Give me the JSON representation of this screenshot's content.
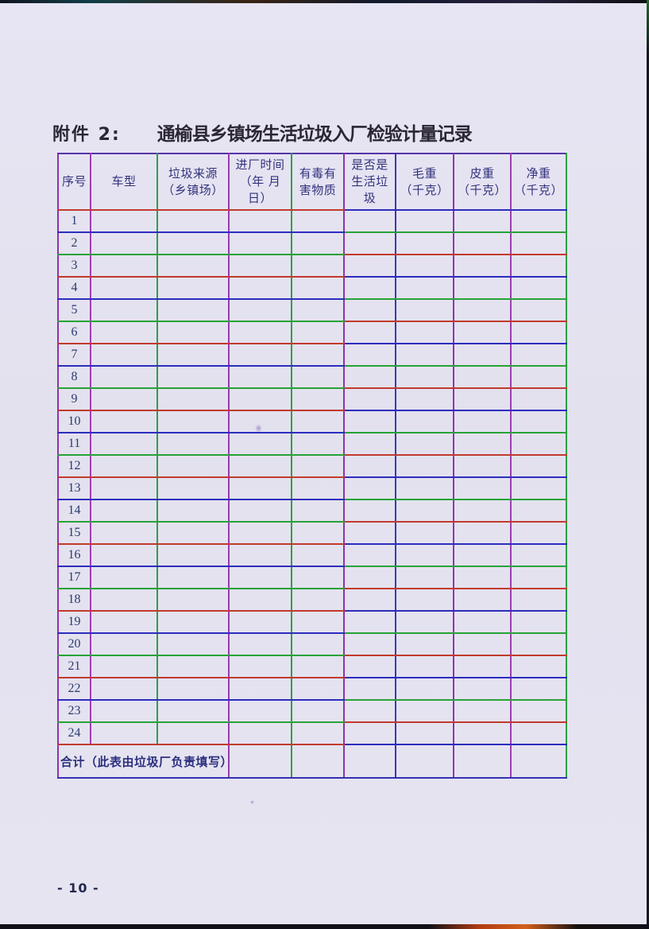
{
  "header": {
    "attachment_label": "附件 2:",
    "title": "通榆县乡镇场生活垃圾入厂检验计量记录"
  },
  "table": {
    "columns": [
      {
        "label": "序号"
      },
      {
        "label": "车型"
      },
      {
        "label": "垃圾来源\n（乡镇场）"
      },
      {
        "label": "进厂时间\n（年 月\n日）"
      },
      {
        "label": "有毒有\n害物质"
      },
      {
        "label": "是否是\n生活垃\n圾"
      },
      {
        "label": "毛重\n（千克）"
      },
      {
        "label": "皮重\n（千克）"
      },
      {
        "label": "净重\n（千克）"
      }
    ],
    "rows": [
      "1",
      "2",
      "3",
      "4",
      "5",
      "6",
      "7",
      "8",
      "9",
      "10",
      "11",
      "12",
      "13",
      "14",
      "15",
      "16",
      "17",
      "18",
      "19",
      "20",
      "21",
      "22",
      "23",
      "24"
    ],
    "footer": {
      "label": "合计（此表由垃圾厂负责填写）"
    }
  },
  "footer": {
    "page_number": "- 10 -"
  },
  "colors": {
    "paper": "#e5e3f0",
    "horizontal_line_palette": [
      "#c23a2e",
      "#2d2dbe",
      "#28a238"
    ],
    "vertical_line_colors": [
      "#a03cb4",
      "#2f9e46",
      "#973bb0",
      "#2f9e46",
      "#8a35a8",
      "#3a3ab0",
      "#8f35b0",
      "#9a3fae",
      "#2f9e46"
    ],
    "outer_border": {
      "top": "#5535a8",
      "left": "#8a35a8",
      "right": "#2f9e46",
      "bottom": "#3232b2"
    },
    "title_ink": "#2b2633",
    "header_ink": "#32327e",
    "number_ink": "#2b3a70",
    "footer_ink": "#2b2f7e",
    "page_number_ink": "#23284e"
  }
}
